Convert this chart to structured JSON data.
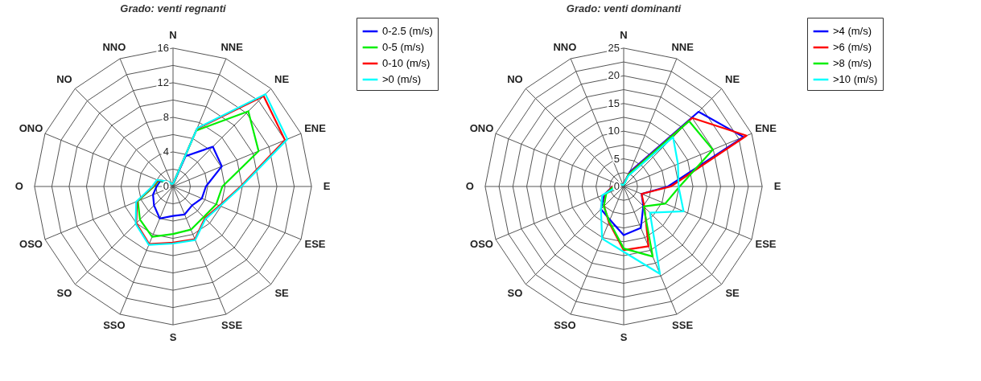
{
  "chart_data": [
    {
      "type": "radar",
      "title": "Grado: venti regnanti",
      "categories": [
        "N",
        "NNE",
        "NE",
        "ENE",
        "E",
        "ESE",
        "SE",
        "SSE",
        "S",
        "SSO",
        "SO",
        "OSO",
        "O",
        "ONO",
        "NO",
        "NNO"
      ],
      "ylim": [
        0,
        16
      ],
      "yticks": [
        0,
        4,
        8,
        12,
        16
      ],
      "grid": true,
      "legend": "right",
      "series": [
        {
          "name": "0-2.5 (m/s)",
          "color": "#0000ff",
          "values": [
            0.3,
            3.8,
            6.5,
            6.1,
            3.8,
            3.6,
            3.1,
            3.5,
            3.4,
            4.0,
            3.1,
            2.5,
            1.9,
            1.6,
            0.5,
            0.3
          ]
        },
        {
          "name": "0-5  (m/s)",
          "color": "#00ee00",
          "values": [
            0.3,
            7.0,
            12.3,
            10.7,
            5.7,
            5.4,
            5.0,
            5.4,
            5.5,
            6.3,
            5.4,
            4.4,
            2.2,
            1.8,
            0.6,
            0.3
          ]
        },
        {
          "name": "0-10 (m/s)",
          "color": "#ff0000",
          "values": [
            0.3,
            7.2,
            14.8,
            14.0,
            7.8,
            5.8,
            5.2,
            6.6,
            6.5,
            7.2,
            6.0,
            4.5,
            2.3,
            1.9,
            0.8,
            0.3
          ]
        },
        {
          "name": ">0 (m/s)",
          "color": "#00ffff",
          "values": [
            0.3,
            7.3,
            15.1,
            14.3,
            7.9,
            5.9,
            5.3,
            6.7,
            6.6,
            7.3,
            6.1,
            4.6,
            2.4,
            2.0,
            0.8,
            0.3
          ]
        }
      ]
    },
    {
      "type": "radar",
      "title": "Grado: venti dominanti",
      "categories": [
        "N",
        "NNE",
        "NE",
        "ENE",
        "E",
        "ESE",
        "SE",
        "SSE",
        "S",
        "SSO",
        "SO",
        "OSO",
        "O",
        "ONO",
        "NO",
        "NNO"
      ],
      "ylim": [
        0,
        25
      ],
      "yticks": [
        0,
        5,
        10,
        15,
        20,
        25
      ],
      "grid": true,
      "legend": "right",
      "series": [
        {
          "name": ">4 (m/s)",
          "color": "#0000ff",
          "values": [
            0.5,
            2.8,
            19.1,
            23.4,
            8.0,
            3.5,
            5.0,
            8.1,
            8.8,
            6.5,
            5.8,
            3.8,
            2.0,
            1.0,
            0.5,
            0.3
          ]
        },
        {
          "name": ">6 (m/s)",
          "color": "#ff0000",
          "values": [
            0.5,
            2.5,
            17.5,
            24.0,
            8.5,
            3.5,
            5.3,
            11.7,
            11.5,
            7.0,
            5.0,
            3.6,
            2.0,
            1.0,
            0.5,
            0.3
          ]
        },
        {
          "name": ">8 (m/s)",
          "color": "#00ee00",
          "values": [
            0.3,
            2.3,
            16.7,
            17.4,
            10.1,
            8.1,
            5.1,
            13.7,
            11.2,
            6.8,
            5.1,
            3.4,
            1.8,
            1.0,
            0.5,
            0.3
          ]
        },
        {
          "name": ">10 (m/s)",
          "color": "#00ffff",
          "values": [
            0.3,
            2.0,
            12.6,
            10.6,
            9.9,
            11.7,
            6.7,
            17.1,
            11.8,
            10.2,
            5.8,
            4.2,
            1.1,
            0.8,
            0.5,
            0.3
          ]
        }
      ]
    }
  ]
}
